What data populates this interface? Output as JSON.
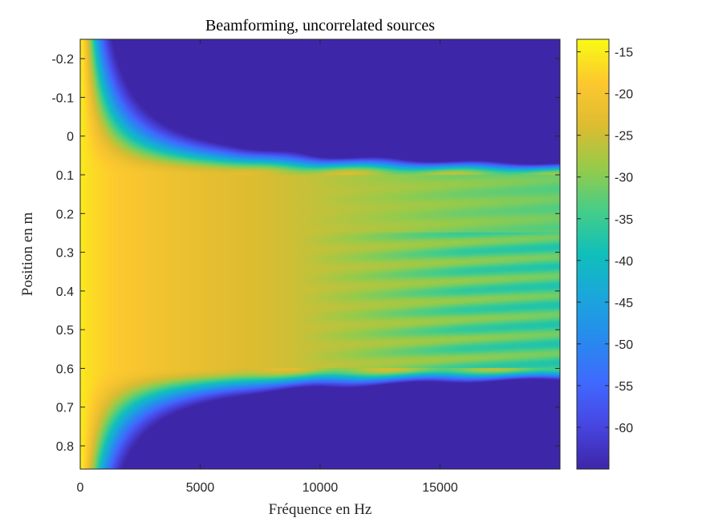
{
  "chart_data": {
    "type": "heatmap",
    "title": "Beamforming, uncorrelated sources",
    "xlabel": "Fréquence en Hz",
    "ylabel": "Position en m",
    "xlim": [
      0,
      20000
    ],
    "ylim": [
      -0.25,
      0.86
    ],
    "y_reversed": true,
    "x_ticks": [
      0,
      5000,
      10000,
      15000
    ],
    "x_tick_labels": [
      "0",
      "5000",
      "10000",
      "15000"
    ],
    "y_ticks": [
      -0.2,
      -0.1,
      0,
      0.1,
      0.2,
      0.3,
      0.4,
      0.5,
      0.6,
      0.7,
      0.8
    ],
    "y_tick_labels": [
      "-0.2",
      "-0.1",
      "0",
      "0.1",
      "0.2",
      "0.3",
      "0.4",
      "0.5",
      "0.6",
      "0.7",
      "0.8"
    ],
    "colorbar": {
      "limits": [
        -65,
        -13.5
      ],
      "ticks": [
        -15,
        -20,
        -25,
        -30,
        -35,
        -40,
        -45,
        -50,
        -55,
        -60
      ],
      "tick_labels": [
        "-15",
        "-20",
        "-25",
        "-30",
        "-35",
        "-40",
        "-45",
        "-50",
        "-55",
        "-60"
      ],
      "colormap": "parula"
    },
    "source_region_m": [
      0.1,
      0.6
    ],
    "values_description_points": [
      {
        "frequency": 0,
        "position": 0.3,
        "level": -14
      },
      {
        "frequency": 3000,
        "position": 0.35,
        "level": -22
      },
      {
        "frequency": 10000,
        "position": 0.2,
        "level": -28
      },
      {
        "frequency": 18000,
        "position": 0.2,
        "level": -31
      },
      {
        "frequency": 18000,
        "position": 0.45,
        "level": -38
      },
      {
        "frequency": 8000,
        "position": -0.2,
        "level": -60
      },
      {
        "frequency": 8000,
        "position": 0.8,
        "level": -60
      }
    ],
    "grid": false
  }
}
